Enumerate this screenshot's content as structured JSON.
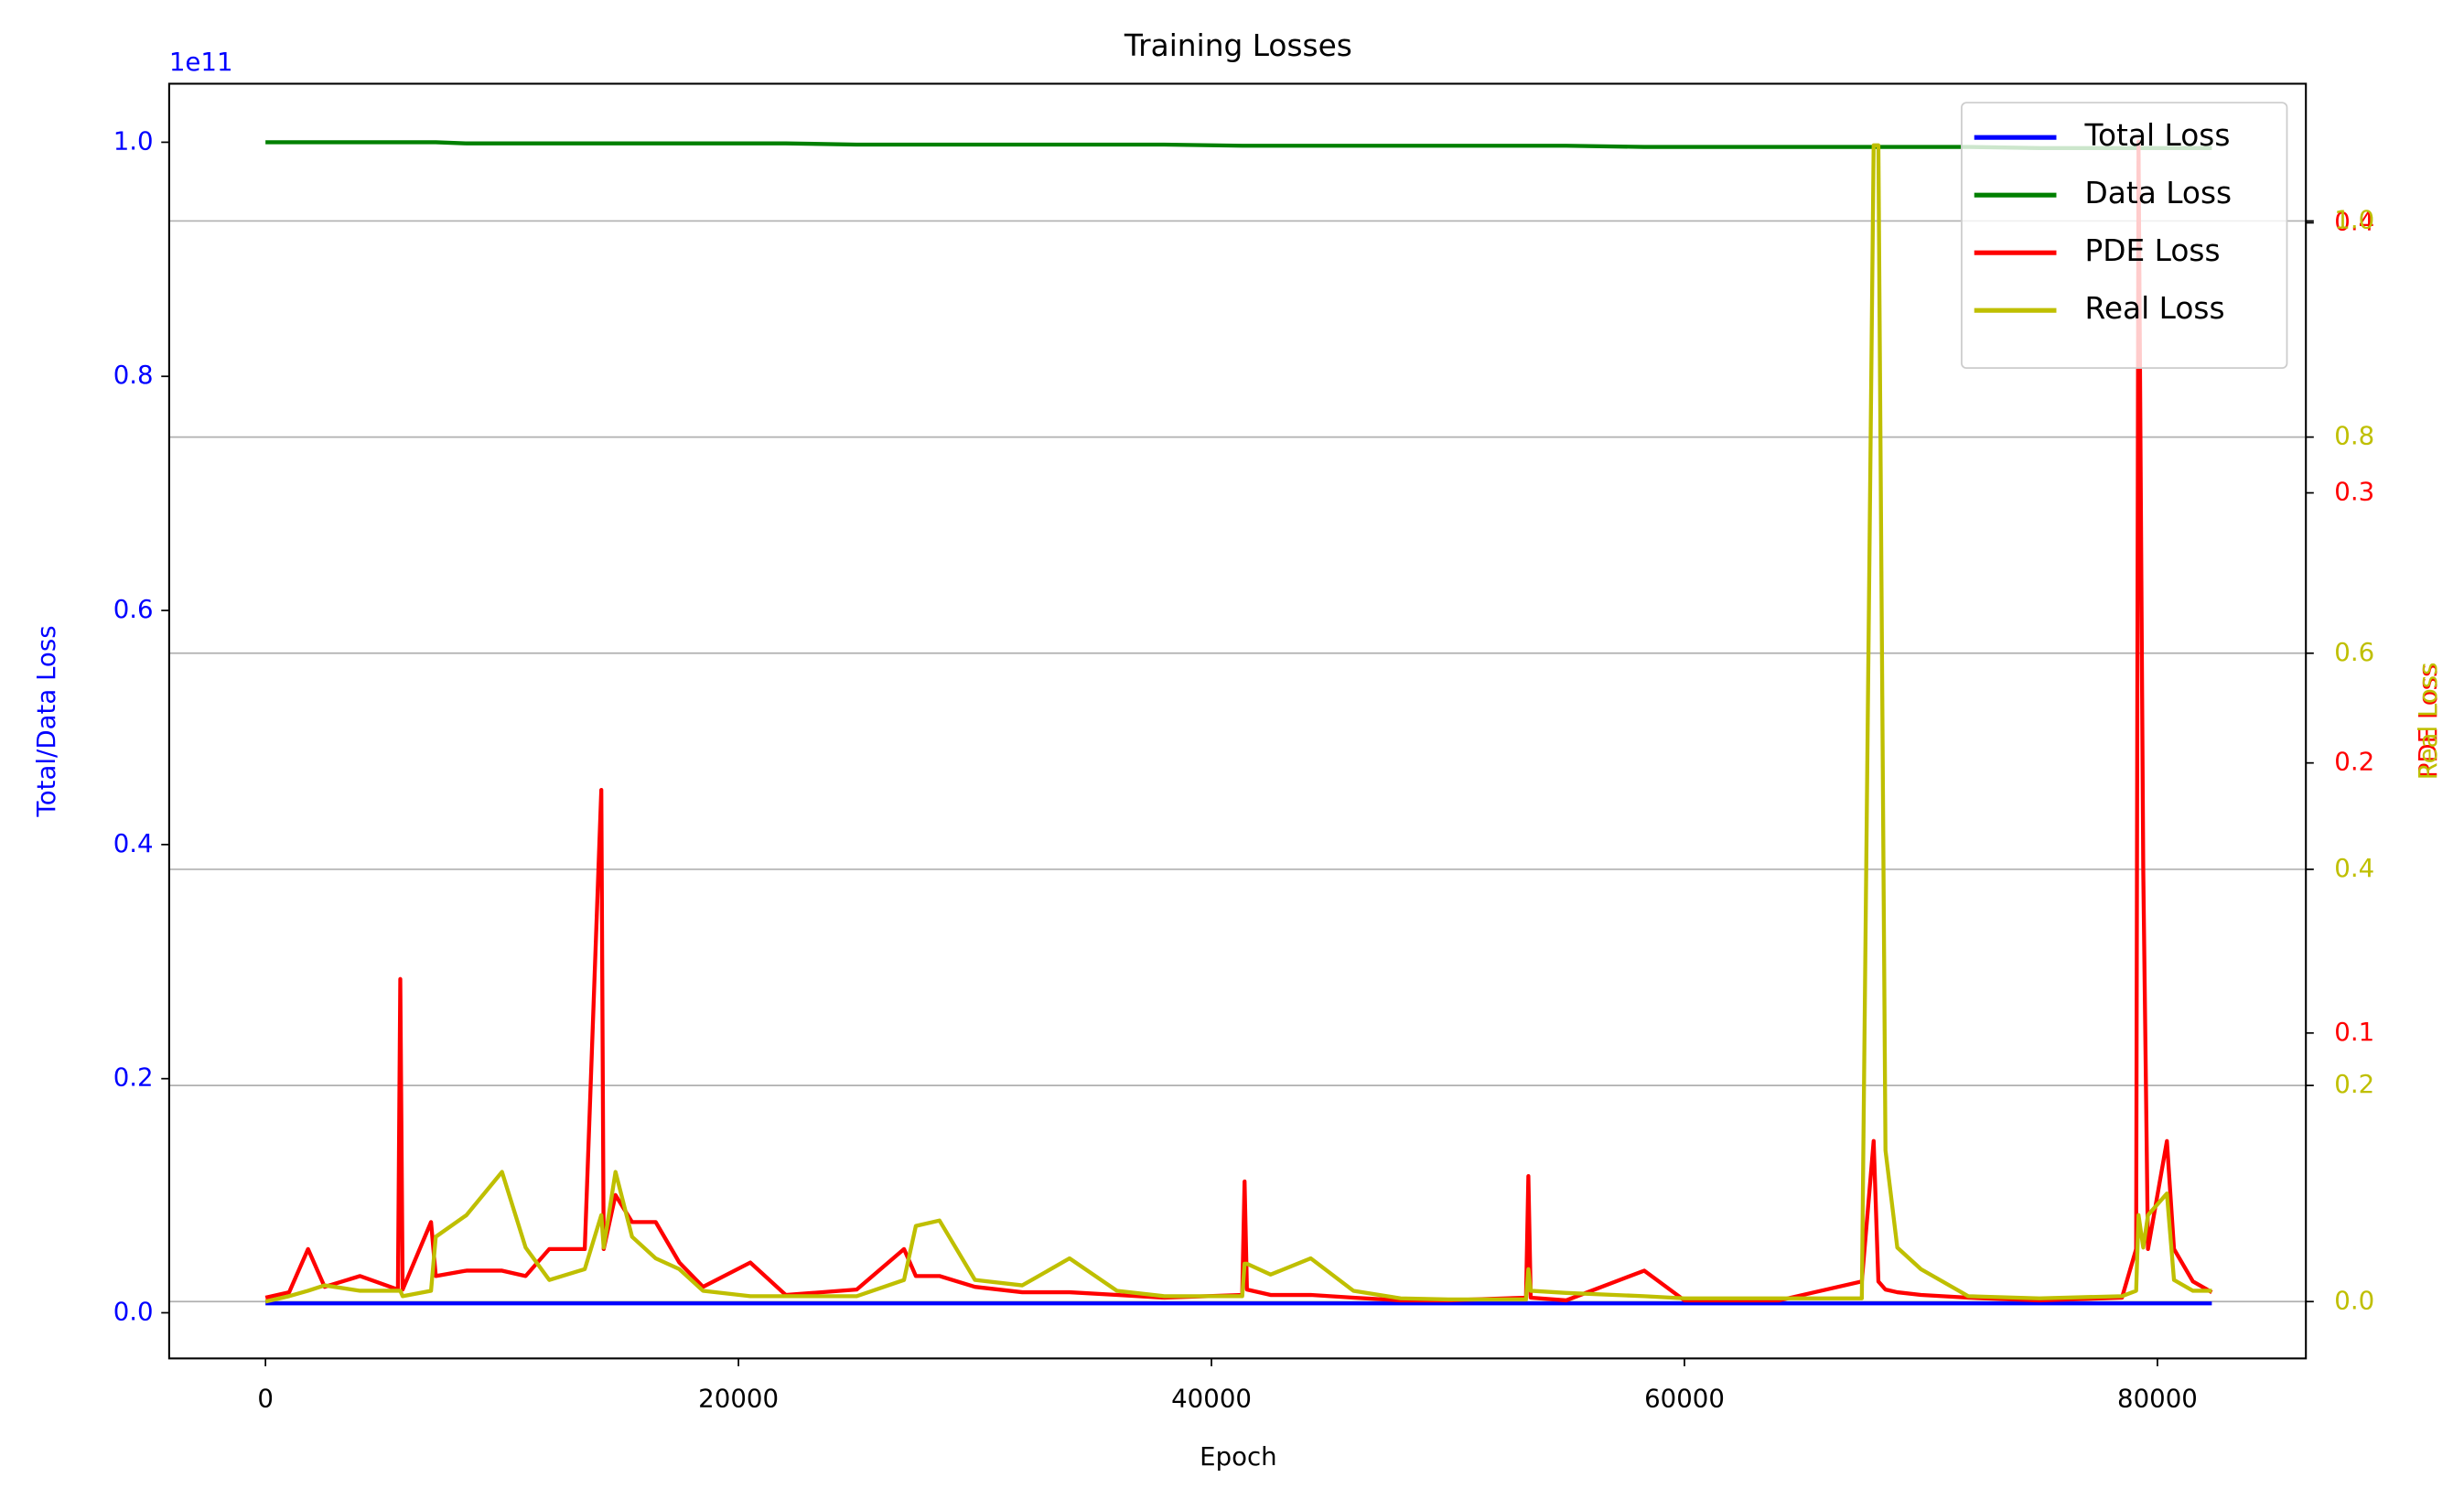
{
  "chart_data": {
    "type": "line",
    "title": "Training Losses",
    "xlabel": "Epoch",
    "ylabel": "Total/Data Loss",
    "y_offset_label": "1e11",
    "y2label": "PDE Loss",
    "y3label": "Real Loss",
    "x": [
      0,
      1000,
      1800,
      2500,
      4000,
      5600,
      5700,
      5800,
      7000,
      7200,
      8500,
      10000,
      11000,
      12000,
      13500,
      14200,
      14300,
      14800,
      15500,
      16500,
      17500,
      18500,
      20500,
      22000,
      25000,
      27000,
      27500,
      28500,
      30000,
      32000,
      34000,
      36000,
      38000,
      41300,
      41400,
      41500,
      42500,
      44200,
      46000,
      48000,
      50000,
      53300,
      53400,
      53500,
      55000,
      58300,
      60000,
      64000,
      67500,
      68000,
      68200,
      68500,
      69000,
      70000,
      72000,
      75000,
      78500,
      79100,
      79200,
      79400,
      79600,
      80400,
      80700,
      81500,
      82300
    ],
    "series": [
      {
        "name": "Total Loss",
        "color": "#0000ff",
        "axis": "y",
        "values": [
          0.008,
          0.008,
          0.008,
          0.008,
          0.008,
          0.008,
          0.008,
          0.008,
          0.008,
          0.008,
          0.008,
          0.008,
          0.008,
          0.008,
          0.008,
          0.008,
          0.008,
          0.008,
          0.008,
          0.008,
          0.008,
          0.008,
          0.008,
          0.008,
          0.008,
          0.008,
          0.008,
          0.008,
          0.008,
          0.008,
          0.008,
          0.008,
          0.008,
          0.008,
          0.008,
          0.008,
          0.008,
          0.008,
          0.008,
          0.008,
          0.008,
          0.008,
          0.008,
          0.008,
          0.008,
          0.008,
          0.008,
          0.008,
          0.008,
          0.008,
          0.008,
          0.008,
          0.008,
          0.008,
          0.008,
          0.008,
          0.008,
          0.008,
          0.008,
          0.008,
          0.008,
          0.008,
          0.008,
          0.008,
          0.008
        ]
      },
      {
        "name": "Data Loss",
        "color": "#008000",
        "axis": "y",
        "values": [
          1.0,
          1.0,
          1.0,
          1.0,
          1.0,
          1.0,
          1.0,
          1.0,
          1.0,
          1.0,
          0.999,
          0.999,
          0.999,
          0.999,
          0.999,
          0.999,
          0.999,
          0.999,
          0.999,
          0.999,
          0.999,
          0.999,
          0.999,
          0.999,
          0.998,
          0.998,
          0.998,
          0.998,
          0.998,
          0.998,
          0.998,
          0.998,
          0.998,
          0.997,
          0.997,
          0.997,
          0.997,
          0.997,
          0.997,
          0.997,
          0.997,
          0.997,
          0.997,
          0.997,
          0.997,
          0.996,
          0.996,
          0.996,
          0.996,
          0.996,
          0.996,
          0.996,
          0.996,
          0.996,
          0.996,
          0.995,
          0.995,
          0.995,
          0.995,
          0.995,
          0.995,
          0.995,
          0.995,
          0.995,
          0.995
        ]
      },
      {
        "name": "PDE Loss",
        "color": "#ff0000",
        "axis": "y2",
        "values": [
          0.002,
          0.004,
          0.02,
          0.006,
          0.01,
          0.005,
          0.12,
          0.005,
          0.03,
          0.01,
          0.012,
          0.012,
          0.01,
          0.02,
          0.02,
          0.19,
          0.02,
          0.04,
          0.03,
          0.03,
          0.015,
          0.006,
          0.015,
          0.003,
          0.005,
          0.02,
          0.01,
          0.01,
          0.006,
          0.004,
          0.004,
          0.003,
          0.002,
          0.003,
          0.045,
          0.005,
          0.003,
          0.003,
          0.002,
          0.001,
          0.001,
          0.002,
          0.047,
          0.002,
          0.001,
          0.012,
          0.001,
          0.001,
          0.008,
          0.06,
          0.008,
          0.005,
          0.004,
          0.003,
          0.002,
          0.001,
          0.002,
          0.02,
          0.43,
          0.16,
          0.02,
          0.06,
          0.02,
          0.008,
          0.004
        ]
      },
      {
        "name": "Real Loss",
        "color": "#bfbf00",
        "axis": "y3",
        "values": [
          0,
          0.005,
          0.01,
          0.015,
          0.01,
          0.01,
          0.01,
          0.005,
          0.01,
          0.06,
          0.08,
          0.12,
          0.05,
          0.02,
          0.03,
          0.08,
          0.05,
          0.12,
          0.06,
          0.04,
          0.03,
          0.01,
          0.005,
          0.005,
          0.005,
          0.02,
          0.07,
          0.075,
          0.02,
          0.015,
          0.04,
          0.01,
          0.005,
          0.005,
          0.035,
          0.035,
          0.025,
          0.04,
          0.01,
          0.003,
          0.002,
          0.002,
          0.03,
          0.01,
          0.008,
          0.005,
          0.003,
          0.003,
          0.003,
          1.07,
          1.07,
          0.14,
          0.05,
          0.03,
          0.005,
          0.003,
          0.005,
          0.01,
          0.08,
          0.05,
          0.08,
          0.1,
          0.02,
          0.01,
          0.01
        ]
      }
    ],
    "xlim": [
      -4073,
      86277
    ],
    "xticks": [
      0,
      20000,
      40000,
      60000,
      80000
    ],
    "ylim": [
      -0.039,
      1.05
    ],
    "yticks": [
      {
        "value": 0,
        "label": "0.0"
      },
      0.2,
      0.4,
      0.6,
      0.8,
      {
        "value": 1,
        "label": "1.0"
      }
    ],
    "y2lim": [
      -0.0205,
      0.4515
    ],
    "y2ticks": [
      0.1,
      0.2,
      0.3,
      0.4
    ],
    "y3lim": [
      -0.0526,
      1.127
    ],
    "y3ticks": [
      {
        "value": 0,
        "label": "0.0"
      },
      0.2,
      0.4,
      0.6,
      0.8,
      {
        "value": 1,
        "label": "1.0"
      }
    ],
    "grid": true,
    "legend": "upper right"
  }
}
